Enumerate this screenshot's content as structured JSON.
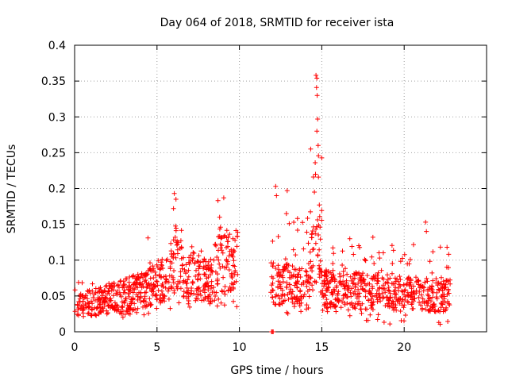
{
  "chart_data": {
    "type": "scatter",
    "title": "Day 064 of 2018, SRMTID for receiver ista",
    "xlabel": "GPS time / hours",
    "ylabel": "SRMTID / TECUs",
    "xlim": [
      0,
      25
    ],
    "ylim": [
      0,
      0.4
    ],
    "x_ticks": [
      0,
      5,
      10,
      15,
      20
    ],
    "x_tick_labels": [
      "0",
      "5",
      "10",
      "15",
      "20"
    ],
    "y_ticks": [
      0,
      0.05,
      0.1,
      0.15,
      0.2,
      0.25,
      0.3,
      0.35,
      0.4
    ],
    "y_tick_labels": [
      "0",
      "0.05",
      "0.1",
      "0.15",
      "0.2",
      "0.25",
      "0.3",
      "0.35",
      "0.4"
    ],
    "grid": true,
    "marker_color": "#ff0000",
    "marker": "+",
    "series": [
      {
        "name": "SRMTID",
        "segments": [
          {
            "x_start": 0.0,
            "x_end": 4.5,
            "y_min": 0.02,
            "y_max": 0.09,
            "trend": [
              0.035,
              0.06
            ]
          },
          {
            "x_start": 4.5,
            "x_end": 5.8,
            "y_min": 0.03,
            "y_max": 0.13,
            "trend": [
              0.06,
              0.08
            ]
          },
          {
            "x_start": 5.8,
            "x_end": 6.5,
            "y_min": 0.04,
            "y_max": 0.19,
            "trend": [
              0.09,
              0.11
            ]
          },
          {
            "x_start": 6.5,
            "x_end": 8.5,
            "y_min": 0.03,
            "y_max": 0.15,
            "trend": [
              0.08,
              0.07
            ]
          },
          {
            "x_start": 8.5,
            "x_end": 9.9,
            "y_min": 0.03,
            "y_max": 0.19,
            "trend": [
              0.09,
              0.1
            ]
          },
          {
            "x_start": 11.9,
            "x_end": 14.2,
            "y_min": 0.02,
            "y_max": 0.2,
            "trend": [
              0.07,
              0.06
            ]
          },
          {
            "x_start": 14.2,
            "x_end": 15.0,
            "y_min": 0.03,
            "y_max": 0.36,
            "trend": [
              0.09,
              0.12
            ]
          },
          {
            "x_start": 15.0,
            "x_end": 22.8,
            "y_min": 0.01,
            "y_max": 0.15,
            "trend": [
              0.06,
              0.05
            ]
          }
        ],
        "peaks": [
          {
            "x": 14.65,
            "y": 0.358
          },
          {
            "x": 14.7,
            "y": 0.354
          },
          {
            "x": 14.68,
            "y": 0.341
          },
          {
            "x": 14.72,
            "y": 0.33
          },
          {
            "x": 14.75,
            "y": 0.297
          },
          {
            "x": 14.7,
            "y": 0.28
          },
          {
            "x": 14.78,
            "y": 0.26
          },
          {
            "x": 14.6,
            "y": 0.236
          },
          {
            "x": 14.62,
            "y": 0.22
          },
          {
            "x": 14.8,
            "y": 0.216
          },
          {
            "x": 14.55,
            "y": 0.195
          },
          {
            "x": 14.85,
            "y": 0.177
          },
          {
            "x": 12.2,
            "y": 0.203
          },
          {
            "x": 12.25,
            "y": 0.19
          },
          {
            "x": 12.9,
            "y": 0.197
          },
          {
            "x": 12.85,
            "y": 0.165
          },
          {
            "x": 6.05,
            "y": 0.193
          },
          {
            "x": 6.15,
            "y": 0.185
          },
          {
            "x": 6.0,
            "y": 0.172
          },
          {
            "x": 8.7,
            "y": 0.183
          },
          {
            "x": 9.05,
            "y": 0.187
          },
          {
            "x": 8.8,
            "y": 0.16
          },
          {
            "x": 21.3,
            "y": 0.153
          },
          {
            "x": 21.35,
            "y": 0.14
          },
          {
            "x": 4.45,
            "y": 0.131
          },
          {
            "x": 16.7,
            "y": 0.13
          },
          {
            "x": 18.1,
            "y": 0.132
          },
          {
            "x": 22.6,
            "y": 0.118
          },
          {
            "x": 12.0,
            "y": 0.0
          },
          {
            "x": 11.95,
            "y": 0.0
          },
          {
            "x": 12.05,
            "y": 0.0
          },
          {
            "x": 22.1,
            "y": 0.013
          },
          {
            "x": 17.7,
            "y": 0.016
          }
        ]
      }
    ]
  }
}
